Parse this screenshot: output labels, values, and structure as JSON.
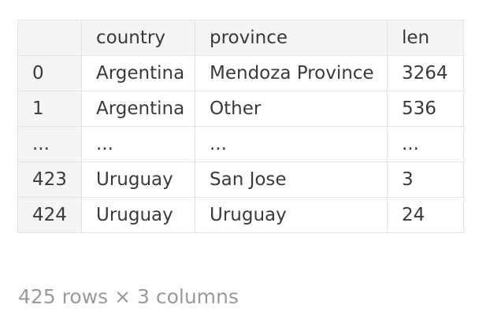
{
  "table": {
    "columns": [
      "",
      "country",
      "province",
      "len"
    ],
    "rows": [
      {
        "index": "0",
        "country": "Argentina",
        "province": "Mendoza Province",
        "len": "3264"
      },
      {
        "index": "1",
        "country": "Argentina",
        "province": "Other",
        "len": "536"
      },
      {
        "index": "...",
        "country": "...",
        "province": "...",
        "len": "..."
      },
      {
        "index": "423",
        "country": "Uruguay",
        "province": "San Jose",
        "len": "3"
      },
      {
        "index": "424",
        "country": "Uruguay",
        "province": "Uruguay",
        "len": "24"
      }
    ]
  },
  "footer": {
    "shape_text": "425 rows × 3 columns"
  }
}
